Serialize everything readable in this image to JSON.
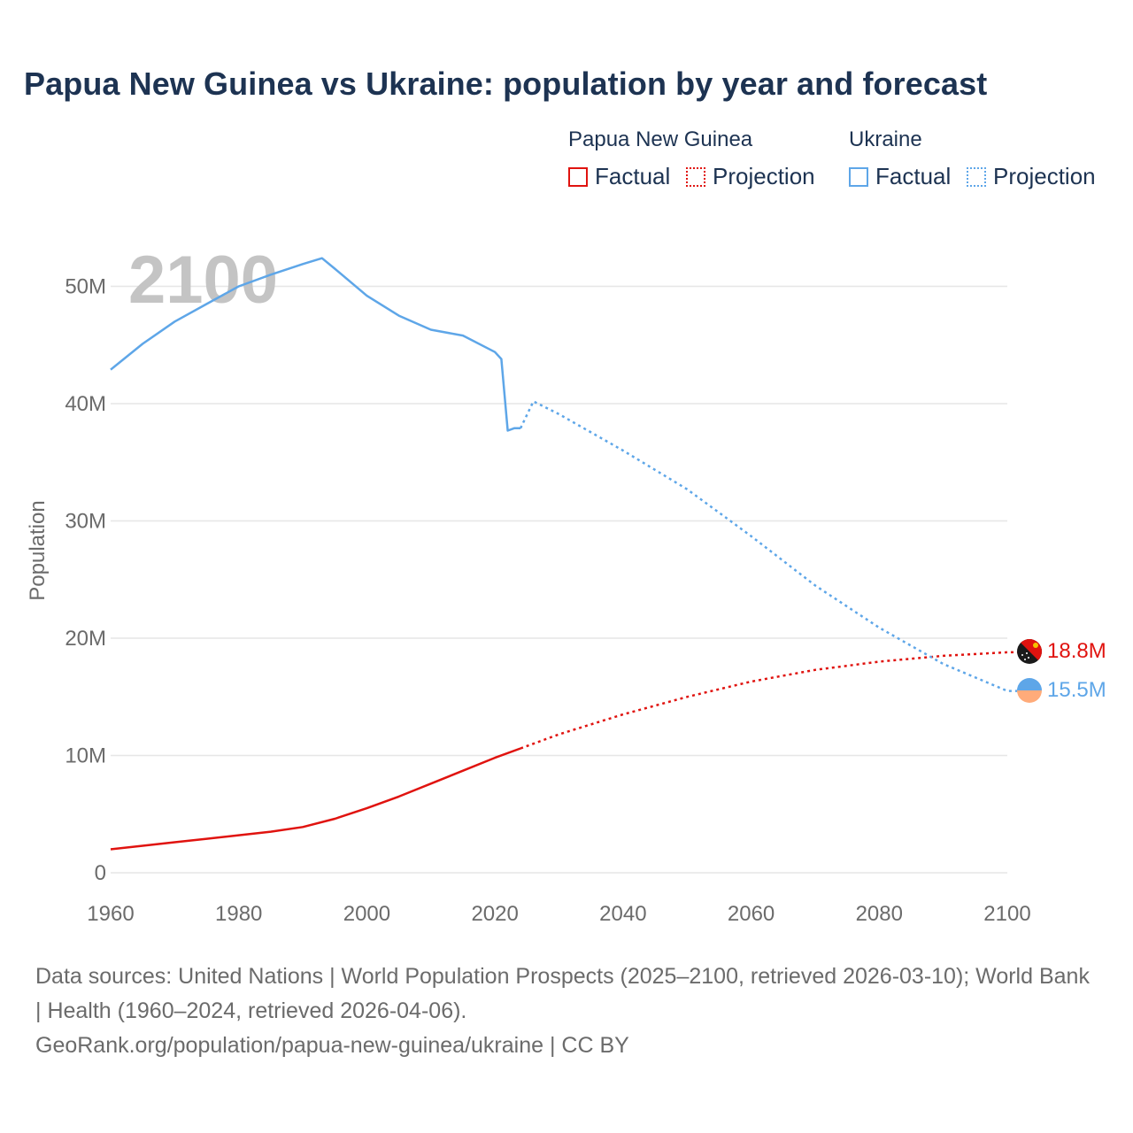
{
  "title": "Papua New Guinea vs Ukraine: population by year and forecast",
  "legend": {
    "groups": [
      {
        "name": "Papua New Guinea",
        "color": "#e0130f",
        "items": [
          {
            "label": "Factual",
            "style": "solid"
          },
          {
            "label": "Projection",
            "style": "dotted"
          }
        ]
      },
      {
        "name": "Ukraine",
        "color": "#5ea6e8",
        "items": [
          {
            "label": "Factual",
            "style": "solid"
          },
          {
            "label": "Projection",
            "style": "dotted"
          }
        ]
      }
    ]
  },
  "year_label": "2100",
  "source": {
    "line1": "Data sources: United Nations | World Population Prospects (2025–2100, retrieved 2026-03-10); World Bank | Health (1960–2024, retrieved 2026-04-06).",
    "line2": "GeoRank.org/population/papua-new-guinea/ukraine | CC BY"
  },
  "chart_data": {
    "type": "line",
    "title": "Papua New Guinea vs Ukraine: population by year and forecast",
    "xlabel": "",
    "ylabel": "Population",
    "xlim": [
      1960,
      2100
    ],
    "ylim": [
      0,
      55000000
    ],
    "x_ticks": [
      1960,
      1980,
      2000,
      2020,
      2040,
      2060,
      2080,
      2100
    ],
    "y_ticks": [
      {
        "value": 0,
        "label": "0"
      },
      {
        "value": 10000000,
        "label": "10M"
      },
      {
        "value": 20000000,
        "label": "20M"
      },
      {
        "value": 30000000,
        "label": "30M"
      },
      {
        "value": 40000000,
        "label": "40M"
      },
      {
        "value": 50000000,
        "label": "50M"
      }
    ],
    "grid": true,
    "series": [
      {
        "name": "Papua New Guinea",
        "color": "#e0130f",
        "end_label": "18.8M",
        "factual": [
          [
            1960,
            2.0
          ],
          [
            1965,
            2.3
          ],
          [
            1970,
            2.6
          ],
          [
            1975,
            2.9
          ],
          [
            1980,
            3.2
          ],
          [
            1985,
            3.5
          ],
          [
            1990,
            3.9
          ],
          [
            1995,
            4.6
          ],
          [
            2000,
            5.5
          ],
          [
            2005,
            6.5
          ],
          [
            2010,
            7.6
          ],
          [
            2015,
            8.7
          ],
          [
            2020,
            9.8
          ],
          [
            2024,
            10.6
          ]
        ],
        "projection": [
          [
            2024,
            10.6
          ],
          [
            2030,
            11.8
          ],
          [
            2040,
            13.5
          ],
          [
            2050,
            15.0
          ],
          [
            2060,
            16.3
          ],
          [
            2070,
            17.3
          ],
          [
            2080,
            18.0
          ],
          [
            2090,
            18.5
          ],
          [
            2100,
            18.8
          ]
        ]
      },
      {
        "name": "Ukraine",
        "color": "#5ea6e8",
        "end_label": "15.5M",
        "factual": [
          [
            1960,
            42.9
          ],
          [
            1965,
            45.1
          ],
          [
            1970,
            47.0
          ],
          [
            1975,
            48.5
          ],
          [
            1980,
            50.0
          ],
          [
            1985,
            51.0
          ],
          [
            1990,
            51.9
          ],
          [
            1993,
            52.4
          ],
          [
            1995,
            51.5
          ],
          [
            2000,
            49.2
          ],
          [
            2005,
            47.5
          ],
          [
            2010,
            46.3
          ],
          [
            2015,
            45.8
          ],
          [
            2020,
            44.4
          ],
          [
            2021,
            43.8
          ],
          [
            2022,
            37.7
          ],
          [
            2023,
            37.9
          ],
          [
            2024,
            37.9
          ]
        ],
        "projection": [
          [
            2024,
            37.9
          ],
          [
            2026,
            40.2
          ],
          [
            2030,
            39.1
          ],
          [
            2040,
            36.0
          ],
          [
            2050,
            32.7
          ],
          [
            2060,
            28.7
          ],
          [
            2070,
            24.5
          ],
          [
            2080,
            20.9
          ],
          [
            2090,
            17.8
          ],
          [
            2100,
            15.5
          ]
        ]
      }
    ]
  }
}
